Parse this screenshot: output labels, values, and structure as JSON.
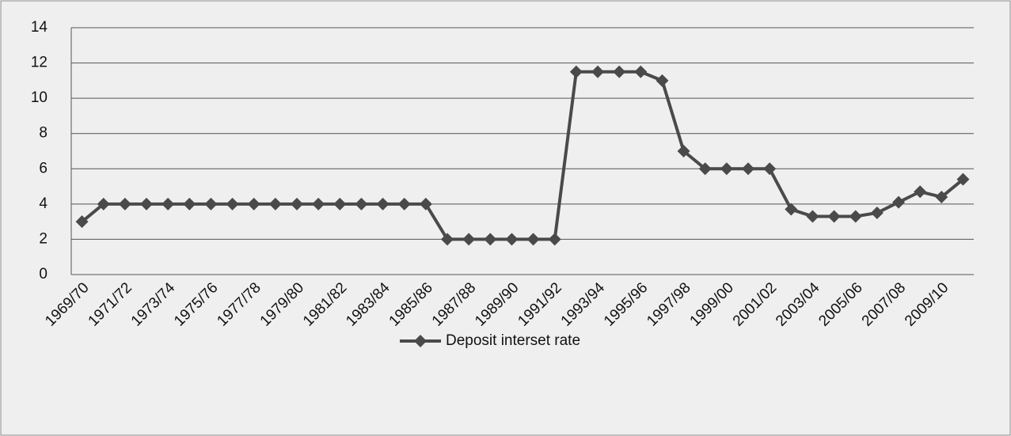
{
  "chart_data": {
    "type": "line",
    "categories": [
      "1969/70",
      null,
      "1971/72",
      null,
      "1973/74",
      null,
      "1975/76",
      null,
      "1977/78",
      null,
      "1979/80",
      null,
      "1981/82",
      null,
      "1983/84",
      null,
      "1985/86",
      null,
      "1987/88",
      null,
      "1989/90",
      null,
      "1991/92",
      null,
      "1993/94",
      null,
      "1995/96",
      null,
      "1997/98",
      null,
      "1999/00",
      null,
      "2001/02",
      null,
      "2003/04",
      null,
      "2005/06",
      null,
      "2007/08",
      null,
      "2009/10",
      null
    ],
    "series": [
      {
        "name": "Deposit interset rate",
        "color": "#4a4a4a",
        "values": [
          3.0,
          4.0,
          4.0,
          4.0,
          4.0,
          4.0,
          4.0,
          4.0,
          4.0,
          4.0,
          4.0,
          4.0,
          4.0,
          4.0,
          4.0,
          4.0,
          4.0,
          2.0,
          2.0,
          2.0,
          2.0,
          2.0,
          2.0,
          11.5,
          11.5,
          11.5,
          11.5,
          11.0,
          7.0,
          6.0,
          6.0,
          6.0,
          6.0,
          3.7,
          3.3,
          3.3,
          3.3,
          3.5,
          4.1,
          4.7,
          4.4,
          5.4
        ]
      }
    ],
    "ylim": [
      0,
      14
    ],
    "yticks": [
      0,
      2,
      4,
      6,
      8,
      10,
      12,
      14
    ],
    "grid": true,
    "legend": "bottom"
  }
}
